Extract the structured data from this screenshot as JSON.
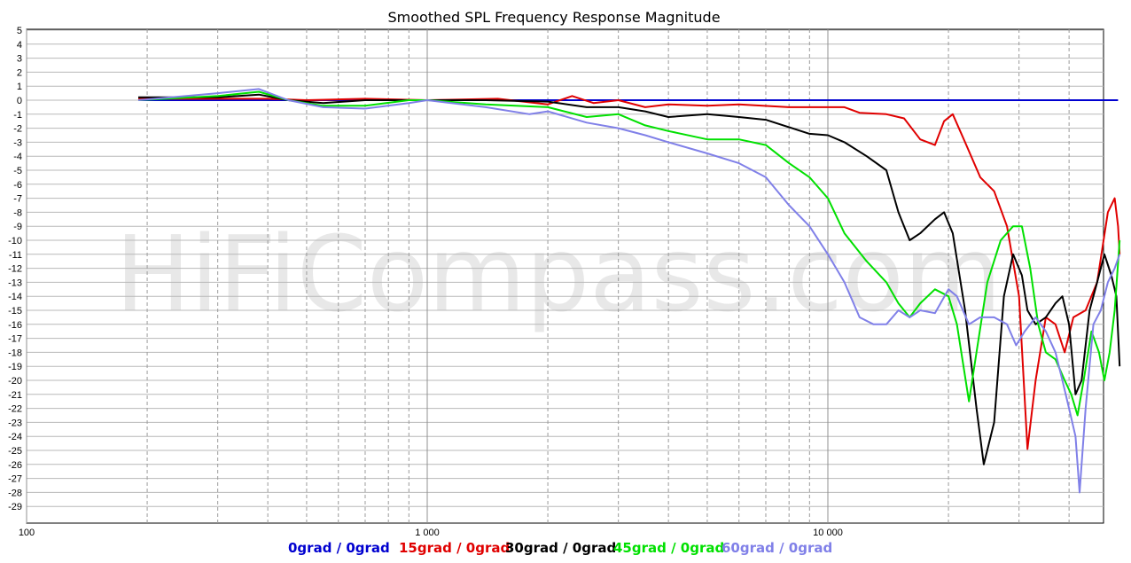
{
  "chart_data": {
    "type": "line",
    "title": "Smoothed SPL Frequency Response Magnitude",
    "watermark": "HiFiCompass.com",
    "x_scale": "log",
    "xlim": [
      100,
      55000
    ],
    "ylim": [
      -30,
      5
    ],
    "x_tick_labels": [
      {
        "value": 100,
        "label": "100"
      },
      {
        "value": 1000,
        "label": "1 000"
      },
      {
        "value": 10000,
        "label": "10 000"
      }
    ],
    "y_ticks": [
      5,
      4,
      3,
      2,
      1,
      0,
      -1,
      -2,
      -3,
      -4,
      -5,
      -6,
      -7,
      -8,
      -9,
      -10,
      -11,
      -12,
      -13,
      -14,
      -15,
      -16,
      -17,
      -18,
      -19,
      -20,
      -21,
      -22,
      -23,
      -24,
      -25,
      -26,
      -27,
      -28,
      -29
    ],
    "grid": true,
    "legend_position": "bottom",
    "series": [
      {
        "name": "0grad / 0grad",
        "color": "#0000d0",
        "points": [
          [
            190,
            0
          ],
          [
            500,
            0
          ],
          [
            1000,
            0
          ],
          [
            5000,
            0
          ],
          [
            20000,
            0
          ],
          [
            53000,
            0
          ]
        ]
      },
      {
        "name": "15grad / 0grad",
        "color": "#e00000",
        "points": [
          [
            190,
            0.1
          ],
          [
            300,
            0.1
          ],
          [
            400,
            0.1
          ],
          [
            500,
            0
          ],
          [
            700,
            0.1
          ],
          [
            1000,
            0
          ],
          [
            1500,
            0.1
          ],
          [
            2000,
            -0.3
          ],
          [
            2300,
            0.3
          ],
          [
            2600,
            -0.2
          ],
          [
            3000,
            0
          ],
          [
            3500,
            -0.5
          ],
          [
            4000,
            -0.3
          ],
          [
            5000,
            -0.4
          ],
          [
            6000,
            -0.3
          ],
          [
            8000,
            -0.5
          ],
          [
            11000,
            -0.5
          ],
          [
            12000,
            -0.9
          ],
          [
            14000,
            -1.0
          ],
          [
            15500,
            -1.3
          ],
          [
            17000,
            -2.8
          ],
          [
            18500,
            -3.2
          ],
          [
            19500,
            -1.5
          ],
          [
            20500,
            -1.0
          ],
          [
            22000,
            -3.0
          ],
          [
            24000,
            -5.5
          ],
          [
            26000,
            -6.5
          ],
          [
            28000,
            -9.0
          ],
          [
            30000,
            -14.0
          ],
          [
            31500,
            -24.9
          ],
          [
            33000,
            -20.0
          ],
          [
            35000,
            -15.5
          ],
          [
            37000,
            -16.0
          ],
          [
            39000,
            -18.0
          ],
          [
            41000,
            -15.5
          ],
          [
            44000,
            -15.0
          ],
          [
            47000,
            -13.0
          ],
          [
            50000,
            -8.0
          ],
          [
            52000,
            -7.0
          ],
          [
            53000,
            -9.0
          ],
          [
            53500,
            -11.0
          ]
        ]
      },
      {
        "name": "30grad / 0grad",
        "color": "#000000",
        "points": [
          [
            190,
            0.2
          ],
          [
            300,
            0.2
          ],
          [
            380,
            0.4
          ],
          [
            450,
            0
          ],
          [
            550,
            -0.2
          ],
          [
            700,
            0
          ],
          [
            900,
            0
          ],
          [
            1000,
            0
          ],
          [
            1400,
            0
          ],
          [
            2000,
            -0.1
          ],
          [
            2500,
            -0.5
          ],
          [
            3000,
            -0.5
          ],
          [
            3500,
            -0.8
          ],
          [
            4000,
            -1.2
          ],
          [
            5000,
            -1.0
          ],
          [
            6000,
            -1.2
          ],
          [
            7000,
            -1.4
          ],
          [
            9000,
            -2.4
          ],
          [
            10000,
            -2.5
          ],
          [
            11000,
            -3.0
          ],
          [
            12500,
            -4.0
          ],
          [
            14000,
            -5.0
          ],
          [
            15000,
            -8.0
          ],
          [
            16000,
            -10.0
          ],
          [
            17000,
            -9.5
          ],
          [
            18500,
            -8.5
          ],
          [
            19500,
            -8.0
          ],
          [
            20500,
            -9.5
          ],
          [
            22000,
            -15.0
          ],
          [
            23500,
            -22.0
          ],
          [
            24500,
            -26.0
          ],
          [
            26000,
            -23.0
          ],
          [
            27500,
            -14.0
          ],
          [
            29000,
            -11.0
          ],
          [
            30500,
            -12.5
          ],
          [
            31500,
            -15.0
          ],
          [
            33000,
            -16.0
          ],
          [
            35000,
            -15.5
          ],
          [
            37000,
            -14.5
          ],
          [
            38500,
            -14.0
          ],
          [
            40000,
            -16.0
          ],
          [
            41500,
            -21.0
          ],
          [
            43000,
            -20.0
          ],
          [
            45000,
            -15.0
          ],
          [
            47000,
            -13.0
          ],
          [
            49000,
            -11.0
          ],
          [
            51000,
            -12.5
          ],
          [
            52500,
            -14.0
          ],
          [
            53500,
            -19.0
          ]
        ]
      },
      {
        "name": "45grad / 0grad",
        "color": "#00e000",
        "points": [
          [
            190,
            0
          ],
          [
            300,
            0.3
          ],
          [
            380,
            0.6
          ],
          [
            450,
            0
          ],
          [
            550,
            -0.4
          ],
          [
            700,
            -0.4
          ],
          [
            900,
            0
          ],
          [
            1000,
            0
          ],
          [
            1400,
            -0.3
          ],
          [
            2000,
            -0.5
          ],
          [
            2500,
            -1.2
          ],
          [
            3000,
            -1.0
          ],
          [
            3500,
            -1.8
          ],
          [
            4000,
            -2.2
          ],
          [
            5000,
            -2.8
          ],
          [
            6000,
            -2.8
          ],
          [
            7000,
            -3.2
          ],
          [
            8000,
            -4.5
          ],
          [
            9000,
            -5.5
          ],
          [
            10000,
            -7.0
          ],
          [
            11000,
            -9.5
          ],
          [
            12500,
            -11.5
          ],
          [
            14000,
            -13.0
          ],
          [
            15000,
            -14.5
          ],
          [
            16000,
            -15.5
          ],
          [
            17000,
            -14.5
          ],
          [
            18500,
            -13.5
          ],
          [
            20000,
            -14.0
          ],
          [
            21000,
            -16.0
          ],
          [
            22500,
            -21.5
          ],
          [
            23500,
            -18.0
          ],
          [
            25000,
            -13.0
          ],
          [
            27000,
            -10.0
          ],
          [
            29000,
            -9.0
          ],
          [
            30500,
            -9.0
          ],
          [
            32000,
            -12.0
          ],
          [
            33500,
            -16.0
          ],
          [
            35000,
            -18.0
          ],
          [
            37000,
            -18.5
          ],
          [
            39000,
            -20.0
          ],
          [
            40500,
            -21.0
          ],
          [
            42000,
            -22.5
          ],
          [
            43500,
            -20.0
          ],
          [
            45500,
            -16.5
          ],
          [
            47500,
            -18.0
          ],
          [
            49000,
            -20.0
          ],
          [
            50500,
            -18.0
          ],
          [
            52000,
            -15.0
          ],
          [
            53500,
            -10.0
          ]
        ]
      },
      {
        "name": "60grad / 0grad",
        "color": "#8080e8",
        "points": [
          [
            190,
            0
          ],
          [
            300,
            0.5
          ],
          [
            380,
            0.8
          ],
          [
            450,
            0
          ],
          [
            550,
            -0.5
          ],
          [
            700,
            -0.6
          ],
          [
            900,
            -0.2
          ],
          [
            1000,
            0
          ],
          [
            1400,
            -0.5
          ],
          [
            1800,
            -1.0
          ],
          [
            2000,
            -0.8
          ],
          [
            2500,
            -1.6
          ],
          [
            3000,
            -2.0
          ],
          [
            3500,
            -2.5
          ],
          [
            4000,
            -3.0
          ],
          [
            5000,
            -3.8
          ],
          [
            6000,
            -4.5
          ],
          [
            7000,
            -5.5
          ],
          [
            8000,
            -7.5
          ],
          [
            9000,
            -9.0
          ],
          [
            10000,
            -11.0
          ],
          [
            11000,
            -13.0
          ],
          [
            12000,
            -15.5
          ],
          [
            13000,
            -16.0
          ],
          [
            14000,
            -16.0
          ],
          [
            15000,
            -15.0
          ],
          [
            16000,
            -15.5
          ],
          [
            17000,
            -15.0
          ],
          [
            18500,
            -15.2
          ],
          [
            20000,
            -13.5
          ],
          [
            21000,
            -14.0
          ],
          [
            22500,
            -16.0
          ],
          [
            24000,
            -15.5
          ],
          [
            26000,
            -15.5
          ],
          [
            28000,
            -16.0
          ],
          [
            29500,
            -17.5
          ],
          [
            31000,
            -16.5
          ],
          [
            33000,
            -15.5
          ],
          [
            35000,
            -16.5
          ],
          [
            37000,
            -18.0
          ],
          [
            38500,
            -20.0
          ],
          [
            40000,
            -22.0
          ],
          [
            41500,
            -24.0
          ],
          [
            42500,
            -28.0
          ],
          [
            44000,
            -22.0
          ],
          [
            46000,
            -16.0
          ],
          [
            48000,
            -15.0
          ],
          [
            50000,
            -13.0
          ],
          [
            52000,
            -12.0
          ],
          [
            53500,
            -11.0
          ]
        ]
      }
    ]
  }
}
